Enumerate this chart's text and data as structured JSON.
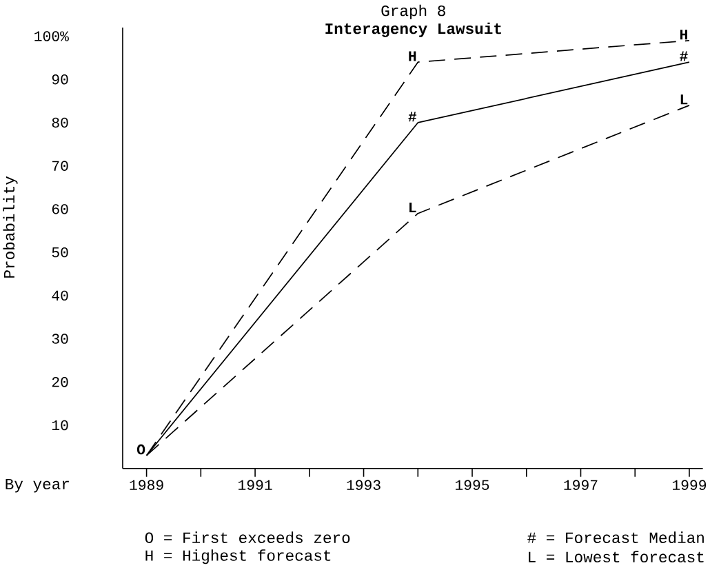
{
  "chart_data": {
    "type": "line",
    "title": "Graph 8",
    "subtitle": "Interagency Lawsuit",
    "xlabel": "By year",
    "ylabel": "Probability",
    "x": [
      1989,
      1994,
      1999
    ],
    "series": [
      {
        "color": "#000000",
        "line_style": "dashed",
        "values": [
          3,
          94,
          99
        ]
      },
      {
        "color": "#000000",
        "line_style": "solid",
        "values": [
          3,
          80,
          94
        ]
      },
      {
        "color": "#000000",
        "line_style": "dashed",
        "values": [
          3,
          59,
          84
        ]
      }
    ],
    "xlim": [
      1988.56,
      1999.25
    ],
    "ylim": [
      0,
      102
    ],
    "xticks": [
      1989,
      {
        "value": 1990,
        "label": null
      },
      1991,
      {
        "value": 1992,
        "label": null
      },
      1993,
      {
        "value": 1994,
        "label": null
      },
      1995,
      {
        "value": 1996,
        "label": null
      },
      1997,
      {
        "value": 1998,
        "label": null
      },
      1999
    ],
    "yticks": [
      10,
      20,
      30,
      40,
      50,
      60,
      70,
      80,
      90,
      {
        "value": 100,
        "label": "100%"
      }
    ],
    "annotations": [
      {
        "text": "O",
        "x": 1989,
        "y": 3
      },
      {
        "text": "H",
        "x": 1994,
        "y": 94
      },
      {
        "text": "#",
        "x": 1994,
        "y": 80
      },
      {
        "text": "L",
        "x": 1994,
        "y": 59
      },
      {
        "text": "H",
        "x": 1999,
        "y": 99
      },
      {
        "text": "#",
        "x": 1999,
        "y": 94
      },
      {
        "text": "L",
        "x": 1999,
        "y": 84
      },
      "O = First exceeds zero",
      "# = Forecast Median",
      "H = Highest forecast",
      "L = Lowest forecast"
    ]
  }
}
